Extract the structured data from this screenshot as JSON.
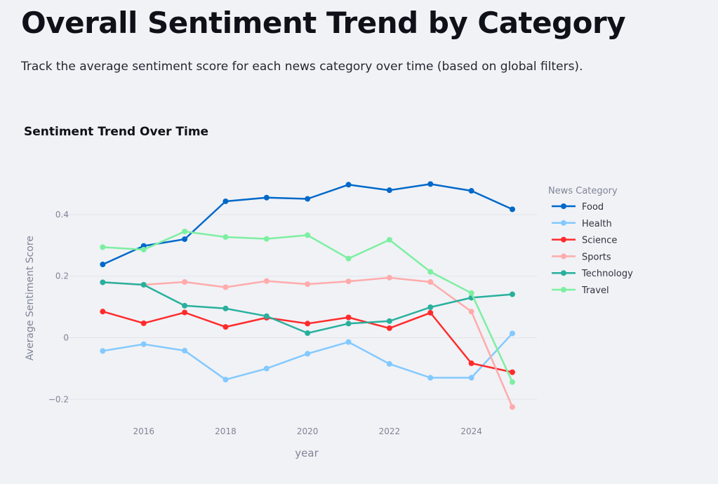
{
  "page": {
    "title": "Overall Sentiment Trend by Category",
    "subtitle": "Track the average sentiment score for each news category over time (based on global filters)."
  },
  "chart_data": {
    "type": "line",
    "title": "Sentiment Trend Over Time",
    "xlabel": "year",
    "ylabel": "Average Sentiment Score",
    "x": [
      2015,
      2016,
      2017,
      2018,
      2019,
      2020,
      2021,
      2022,
      2023,
      2024,
      2025
    ],
    "xlim": [
      2014.0,
      2025.6
    ],
    "ylim": [
      -0.27,
      0.55
    ],
    "xticks": [
      2016,
      2018,
      2020,
      2022,
      2024
    ],
    "xtick_labels": [
      "2016",
      "2018",
      "2020",
      "2022",
      "2024"
    ],
    "yticks": [
      -0.2,
      0,
      0.2,
      0.4
    ],
    "ytick_labels": [
      "−0.2",
      "0",
      "0.2",
      "0.4"
    ],
    "grid": true,
    "legend": {
      "title": "News Category",
      "placement": "right"
    },
    "series": [
      {
        "name": "Food",
        "color": "#0068c9",
        "values": [
          0.238,
          0.298,
          0.32,
          0.443,
          0.455,
          0.451,
          0.497,
          0.479,
          0.499,
          0.477,
          0.417
        ]
      },
      {
        "name": "Health",
        "color": "#83c9ff",
        "values": [
          -0.043,
          -0.021,
          -0.042,
          -0.136,
          -0.1,
          -0.052,
          -0.014,
          -0.085,
          -0.13,
          -0.13,
          0.014
        ]
      },
      {
        "name": "Science",
        "color": "#ff2b2b",
        "values": [
          0.085,
          0.047,
          0.082,
          0.035,
          0.065,
          0.046,
          0.066,
          0.031,
          0.081,
          -0.083,
          -0.112
        ]
      },
      {
        "name": "Sports",
        "color": "#ffabab",
        "values": [
          0.18,
          0.172,
          0.181,
          0.164,
          0.184,
          0.174,
          0.183,
          0.195,
          0.181,
          0.085,
          -0.225
        ]
      },
      {
        "name": "Technology",
        "color": "#29b09d",
        "values": [
          0.18,
          0.172,
          0.104,
          0.095,
          0.07,
          0.015,
          0.046,
          0.054,
          0.099,
          0.13,
          0.141
        ]
      },
      {
        "name": "Travel",
        "color": "#7defa1",
        "values": [
          0.294,
          0.286,
          0.345,
          0.327,
          0.321,
          0.333,
          0.257,
          0.318,
          0.214,
          0.145,
          -0.144
        ]
      }
    ]
  }
}
